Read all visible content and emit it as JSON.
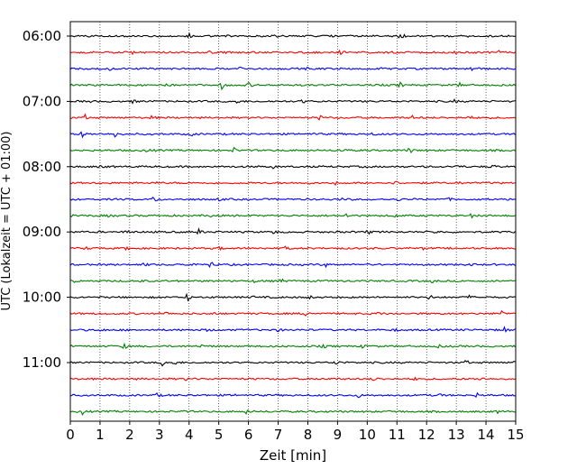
{
  "chart_data": {
    "type": "line",
    "title": "",
    "xlabel": "Zeit  [min]",
    "ylabel": "UTC (Lokalzeit = UTC + 01:00)",
    "xlim": [
      0,
      15
    ],
    "x_ticks": [
      0,
      1,
      2,
      3,
      4,
      5,
      6,
      7,
      8,
      9,
      10,
      11,
      12,
      13,
      14,
      15
    ],
    "x_grid": true,
    "trace_interval_min": 15,
    "trace_colors": [
      "#000000",
      "#ff0000",
      "#0000ff",
      "#008000"
    ],
    "y_tick_labels": [
      "06:00",
      "07:00",
      "08:00",
      "09:00",
      "10:00",
      "11:00"
    ],
    "traces": [
      {
        "start": "06:00",
        "color": "#000000",
        "events": [
          [
            4.0,
            0.3
          ],
          [
            5.2,
            0.35
          ],
          [
            11.1,
            0.6
          ],
          [
            13.4,
            0.25
          ],
          [
            6.8,
            0.2
          ]
        ]
      },
      {
        "start": "06:15",
        "color": "#ff0000",
        "events": [
          [
            2.1,
            0.35
          ],
          [
            4.7,
            0.3
          ],
          [
            9.1,
            0.55
          ],
          [
            12.9,
            0.35
          ],
          [
            14.4,
            0.3
          ]
        ]
      },
      {
        "start": "06:30",
        "color": "#0000ff",
        "events": [
          [
            1.3,
            0.25
          ],
          [
            5.7,
            0.25
          ],
          [
            10.4,
            0.3
          ],
          [
            13.5,
            0.7
          ],
          [
            7.9,
            0.2
          ]
        ]
      },
      {
        "start": "06:45",
        "color": "#008000",
        "events": [
          [
            3.2,
            0.4
          ],
          [
            5.1,
            0.55
          ],
          [
            6.0,
            0.4
          ],
          [
            11.1,
            0.4
          ],
          [
            13.1,
            0.3
          ]
        ]
      },
      {
        "start": "07:00",
        "color": "#000000",
        "events": [
          [
            0.6,
            0.25
          ],
          [
            2.1,
            0.3
          ],
          [
            5.6,
            0.25
          ],
          [
            7.8,
            0.35
          ],
          [
            12.9,
            0.25
          ]
        ]
      },
      {
        "start": "07:15",
        "color": "#ff0000",
        "events": [
          [
            0.5,
            0.35
          ],
          [
            2.7,
            0.3
          ],
          [
            8.4,
            0.45
          ],
          [
            11.5,
            0.3
          ],
          [
            13.4,
            0.35
          ]
        ]
      },
      {
        "start": "07:30",
        "color": "#0000ff",
        "events": [
          [
            0.4,
            0.55
          ],
          [
            1.5,
            0.6
          ],
          [
            4.1,
            0.25
          ],
          [
            8.2,
            0.2
          ],
          [
            10.2,
            0.2
          ]
        ]
      },
      {
        "start": "07:45",
        "color": "#008000",
        "events": [
          [
            2.6,
            0.35
          ],
          [
            5.5,
            0.35
          ],
          [
            9.1,
            0.3
          ],
          [
            11.4,
            0.6
          ],
          [
            13.0,
            0.25
          ]
        ]
      },
      {
        "start": "08:00",
        "color": "#000000",
        "events": [
          [
            1.0,
            0.2
          ],
          [
            6.8,
            0.25
          ],
          [
            9.8,
            0.25
          ],
          [
            13.0,
            0.3
          ],
          [
            14.2,
            0.55
          ]
        ]
      },
      {
        "start": "08:15",
        "color": "#ff0000",
        "events": [
          [
            2.8,
            0.3
          ],
          [
            7.9,
            0.55
          ],
          [
            8.9,
            0.3
          ],
          [
            10.9,
            0.45
          ],
          [
            13.1,
            0.3
          ]
        ]
      },
      {
        "start": "08:30",
        "color": "#0000ff",
        "events": [
          [
            2.8,
            0.65
          ],
          [
            5.0,
            0.2
          ],
          [
            9.1,
            0.2
          ],
          [
            11.0,
            0.25
          ],
          [
            12.7,
            0.2
          ]
        ]
      },
      {
        "start": "08:45",
        "color": "#008000",
        "events": [
          [
            1.3,
            0.35
          ],
          [
            4.7,
            0.25
          ],
          [
            9.3,
            0.55
          ],
          [
            10.9,
            0.25
          ],
          [
            13.5,
            0.3
          ]
        ]
      },
      {
        "start": "09:00",
        "color": "#000000",
        "events": [
          [
            1.9,
            0.35
          ],
          [
            4.3,
            0.5
          ],
          [
            6.8,
            0.35
          ],
          [
            10.0,
            0.45
          ],
          [
            12.3,
            0.25
          ]
        ]
      },
      {
        "start": "09:15",
        "color": "#ff0000",
        "events": [
          [
            0.5,
            0.25
          ],
          [
            1.9,
            0.3
          ],
          [
            5.0,
            0.25
          ],
          [
            7.2,
            0.3
          ],
          [
            11.9,
            0.25
          ]
        ]
      },
      {
        "start": "09:30",
        "color": "#0000ff",
        "events": [
          [
            2.5,
            0.3
          ],
          [
            3.8,
            0.4
          ],
          [
            4.7,
            0.75
          ],
          [
            8.6,
            0.3
          ],
          [
            13.4,
            0.35
          ]
        ]
      },
      {
        "start": "09:45",
        "color": "#008000",
        "events": [
          [
            0.1,
            0.35
          ],
          [
            2.3,
            0.25
          ],
          [
            6.2,
            0.25
          ],
          [
            7.1,
            0.3
          ],
          [
            12.2,
            0.25
          ]
        ]
      },
      {
        "start": "10:00",
        "color": "#000000",
        "events": [
          [
            3.9,
            0.8
          ],
          [
            6.1,
            0.25
          ],
          [
            8.0,
            0.45
          ],
          [
            12.1,
            0.4
          ],
          [
            13.4,
            0.35
          ]
        ]
      },
      {
        "start": "10:15",
        "color": "#ff0000",
        "events": [
          [
            3.2,
            0.25
          ],
          [
            4.7,
            0.4
          ],
          [
            7.9,
            0.55
          ],
          [
            10.3,
            0.45
          ],
          [
            14.5,
            0.6
          ]
        ]
      },
      {
        "start": "10:30",
        "color": "#0000ff",
        "events": [
          [
            1.0,
            0.25
          ],
          [
            4.6,
            0.2
          ],
          [
            7.0,
            0.25
          ],
          [
            10.9,
            0.25
          ],
          [
            14.6,
            0.55
          ]
        ]
      },
      {
        "start": "10:45",
        "color": "#008000",
        "events": [
          [
            1.8,
            0.5
          ],
          [
            4.4,
            0.2
          ],
          [
            8.5,
            0.3
          ],
          [
            9.8,
            0.25
          ],
          [
            12.4,
            0.25
          ]
        ]
      },
      {
        "start": "11:00",
        "color": "#000000",
        "events": [
          [
            3.1,
            0.6
          ],
          [
            3.5,
            0.35
          ],
          [
            8.9,
            0.75
          ],
          [
            13.3,
            0.4
          ],
          [
            14.95,
            0.55
          ]
        ]
      },
      {
        "start": "11:15",
        "color": "#ff0000",
        "events": [
          [
            3.9,
            0.25
          ],
          [
            8.5,
            0.55
          ],
          [
            10.2,
            0.3
          ],
          [
            11.6,
            0.25
          ],
          [
            13.8,
            0.25
          ]
        ]
      },
      {
        "start": "11:30",
        "color": "#0000ff",
        "events": [
          [
            2.9,
            0.35
          ],
          [
            5.6,
            0.2
          ],
          [
            9.7,
            0.25
          ],
          [
            12.4,
            0.25
          ],
          [
            13.7,
            0.35
          ]
        ]
      },
      {
        "start": "11:45",
        "color": "#008000",
        "events": [
          [
            0.4,
            0.45
          ],
          [
            5.9,
            0.45
          ],
          [
            3.7,
            0.25
          ],
          [
            10.9,
            0.4
          ],
          [
            14.4,
            0.25
          ]
        ]
      }
    ]
  }
}
